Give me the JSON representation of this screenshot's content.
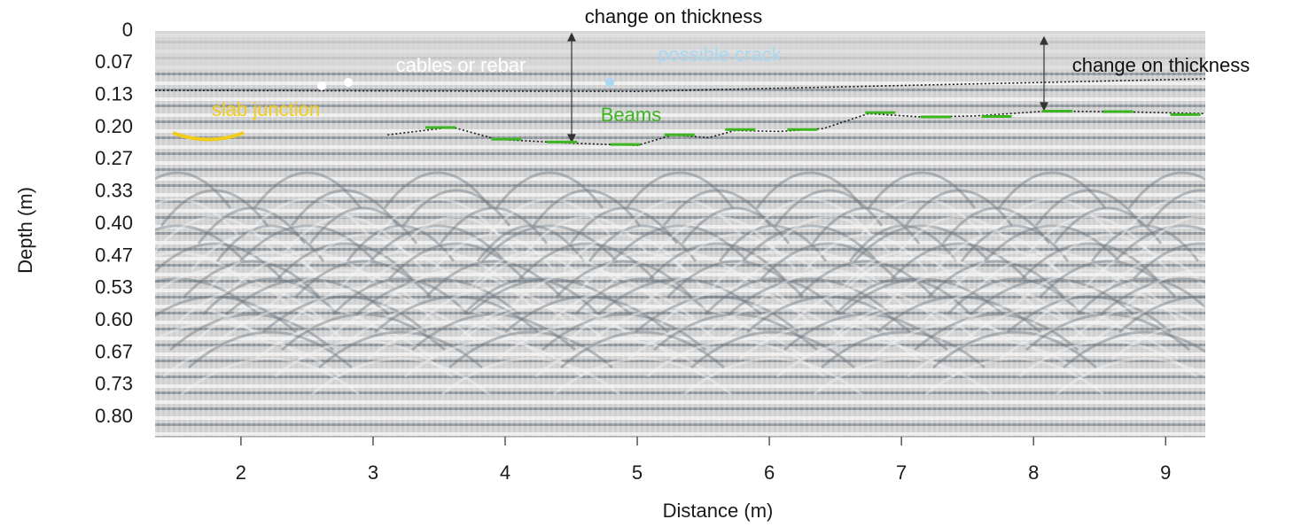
{
  "chart_data": {
    "type": "radargram",
    "xlabel": "Distance (m)",
    "ylabel": "Depth (m)",
    "xlim": [
      1.35,
      9.3
    ],
    "ylim": [
      0,
      0.84
    ],
    "y_inverted": true,
    "xticks": [
      2,
      3,
      4,
      5,
      6,
      7,
      8,
      9
    ],
    "yticks": [
      0,
      {
        "value": 0.0667,
        "label": "0.07"
      },
      {
        "value": 0.1333,
        "label": "0.13"
      },
      {
        "value": 0.2,
        "label": "0.20"
      },
      {
        "value": 0.2667,
        "label": "0.27"
      },
      {
        "value": 0.3333,
        "label": "0.33"
      },
      {
        "value": 0.4,
        "label": "0.40"
      },
      {
        "value": 0.4667,
        "label": "0.47"
      },
      {
        "value": 0.5333,
        "label": "0.53"
      },
      {
        "value": 0.6,
        "label": "0.60"
      },
      {
        "value": 0.6667,
        "label": "0.67"
      },
      {
        "value": 0.7333,
        "label": "0.73"
      },
      {
        "value": 0.8,
        "label": "0.80"
      }
    ],
    "series": [
      {
        "color": "#1a1a1a",
        "style": "dotted",
        "x": [
          1.35,
          5.0,
          9.3
        ],
        "values": [
          0.123,
          0.125,
          0.099
        ]
      },
      {
        "color": "#1a1a1a",
        "style": "dotted",
        "x": [
          3.11,
          3.6,
          3.93,
          4.47,
          5.0,
          5.27,
          5.54,
          5.74,
          6.08,
          6.41,
          6.75,
          7.15,
          7.55,
          8.09,
          8.63,
          9.3
        ],
        "values": [
          0.215,
          0.199,
          0.224,
          0.232,
          0.237,
          0.215,
          0.221,
          0.206,
          0.208,
          0.202,
          0.171,
          0.178,
          0.176,
          0.166,
          0.167,
          0.171
        ]
      },
      {
        "color": "#3cb521",
        "style": "dash",
        "x": [
          3.51,
          4.01,
          4.43,
          4.91,
          5.32,
          5.78,
          6.25,
          6.84,
          7.26,
          7.72,
          8.18,
          8.64,
          9.15
        ],
        "values": [
          0.2,
          0.224,
          0.23,
          0.235,
          0.215,
          0.204,
          0.204,
          0.169,
          0.178,
          0.177,
          0.166,
          0.167,
          0.173
        ]
      }
    ],
    "annotations": [
      {
        "text": "change on thickness",
        "color": "#111111"
      },
      {
        "text": "change on thickness",
        "color": "#111111"
      },
      {
        "text": "cables or rebar",
        "color": "#ffffff"
      },
      {
        "text": "possible crack",
        "color": "#a9d8f2"
      },
      {
        "text": "slab junction",
        "color": "#f2cc1b"
      },
      {
        "text": "Beams",
        "color": "#3cb521"
      }
    ]
  }
}
